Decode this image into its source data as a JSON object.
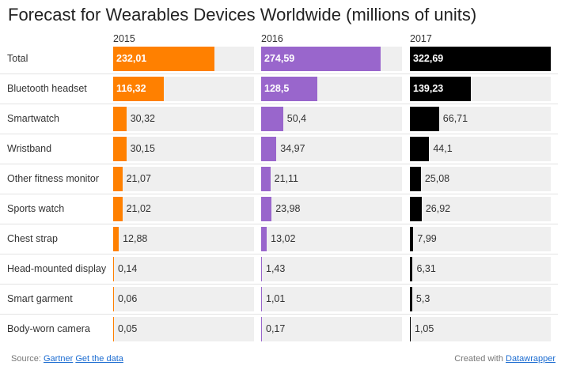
{
  "chart_data": {
    "type": "bar",
    "title": "Forecast for Wearables Devices Worldwide (millions of units)",
    "categories": [
      "Total",
      "Bluetooth headset",
      "Smartwatch",
      "Wristband",
      "Other fitness monitor",
      "Sports watch",
      "Chest strap",
      "Head-mounted display",
      "Smart garment",
      "Body-worn camera"
    ],
    "series": [
      {
        "name": "2015",
        "color": "#ff8000",
        "values": [
          232.01,
          116.32,
          30.32,
          30.15,
          21.07,
          21.02,
          12.88,
          0.14,
          0.06,
          0.05
        ],
        "labels": [
          "232,01",
          "116,32",
          "30,32",
          "30,15",
          "21,07",
          "21,02",
          "12,88",
          "0,14",
          "0,06",
          "0,05"
        ]
      },
      {
        "name": "2016",
        "color": "#9966cc",
        "values": [
          274.59,
          128.5,
          50.4,
          34.97,
          21.11,
          23.98,
          13.02,
          1.43,
          1.01,
          0.17
        ],
        "labels": [
          "274,59",
          "128,5",
          "50,4",
          "34,97",
          "21,11",
          "23,98",
          "13,02",
          "1,43",
          "1,01",
          "0,17"
        ]
      },
      {
        "name": "2017",
        "color": "#000000",
        "values": [
          322.69,
          139.23,
          66.71,
          44.1,
          25.08,
          26.92,
          7.99,
          6.31,
          5.3,
          1.05
        ],
        "labels": [
          "322,69",
          "139,23",
          "66,71",
          "44,1",
          "25,08",
          "26,92",
          "7,99",
          "6,31",
          "5,3",
          "1,05"
        ]
      }
    ],
    "xlim": [
      0,
      322.69
    ],
    "grid": false,
    "legend": "none"
  },
  "footer": {
    "source_prefix": "Source:",
    "source_link": "Gartner",
    "data_link": "Get the data",
    "created_prefix": "Created with",
    "created_link": "Datawrapper"
  }
}
